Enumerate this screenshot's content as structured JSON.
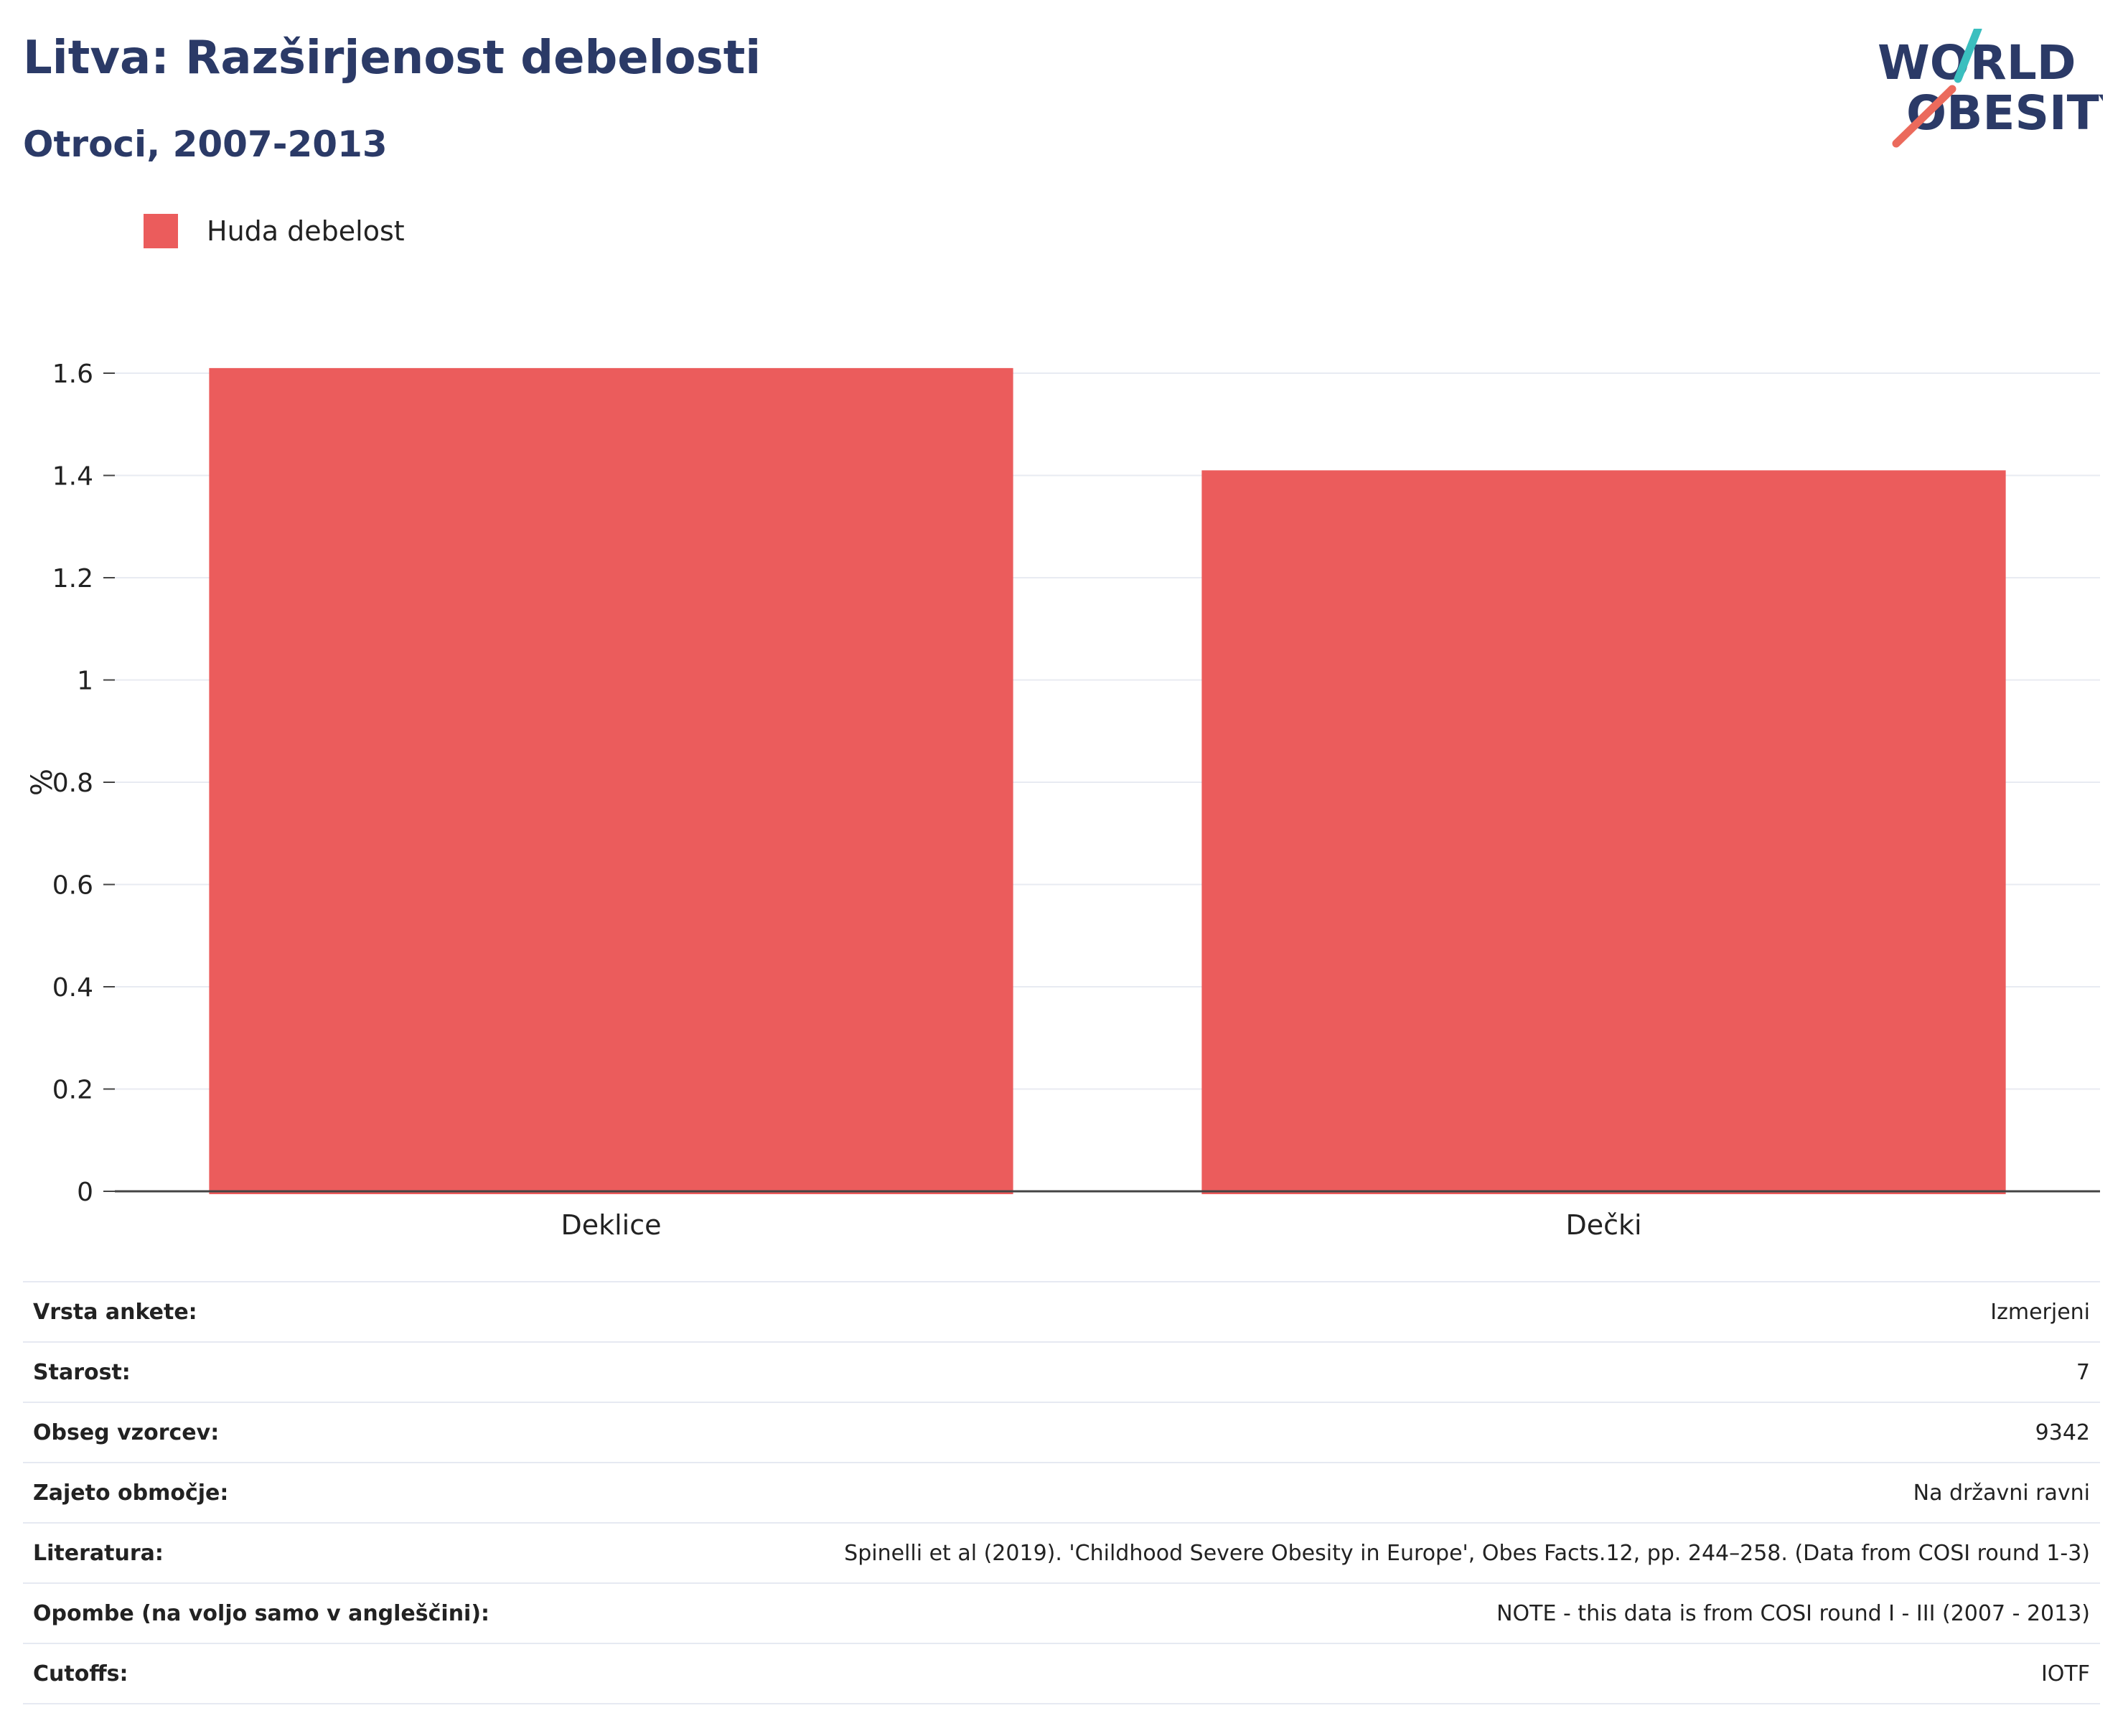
{
  "header": {
    "title": "Litva: Razširjenost debelosti",
    "subtitle": "Otroci, 2007-2013"
  },
  "logo": {
    "line1": "WORLD",
    "line2": "OBESITY",
    "colors": {
      "text": "#2b3a67",
      "teal": "#3bbfbf",
      "coral": "#eb6a5c"
    }
  },
  "legend": {
    "items": [
      {
        "label": "Huda debelost",
        "color": "#eb5c5c"
      }
    ]
  },
  "chart_data": {
    "type": "bar",
    "categories": [
      "Deklice",
      "Dečki"
    ],
    "series": [
      {
        "name": "Huda debelost",
        "values": [
          1.61,
          1.41
        ],
        "color": "#eb5c5c"
      }
    ],
    "ylabel": "%",
    "xlabel": "",
    "ylim": [
      0,
      1.6
    ],
    "yticks": [
      "0",
      "0.2",
      "0.4",
      "0.6",
      "0.8",
      "1",
      "1.2",
      "1.4",
      "1.6"
    ],
    "grid": true,
    "legend_position": "top-left"
  },
  "info": [
    {
      "key": "Vrsta ankete:",
      "value": "Izmerjeni"
    },
    {
      "key": "Starost:",
      "value": "7"
    },
    {
      "key": "Obseg vzorcev:",
      "value": "9342"
    },
    {
      "key": "Zajeto območje:",
      "value": "Na državni ravni"
    },
    {
      "key": "Literatura:",
      "value": "Spinelli et al (2019). 'Childhood Severe Obesity in Europe', Obes Facts.12, pp. 244–258. (Data from COSI round 1-3)"
    },
    {
      "key": "Opombe (na voljo samo v angleščini):",
      "value": "NOTE - this data is from COSI round I - III (2007 - 2013)"
    },
    {
      "key": "Cutoffs:",
      "value": "IOTF"
    }
  ]
}
